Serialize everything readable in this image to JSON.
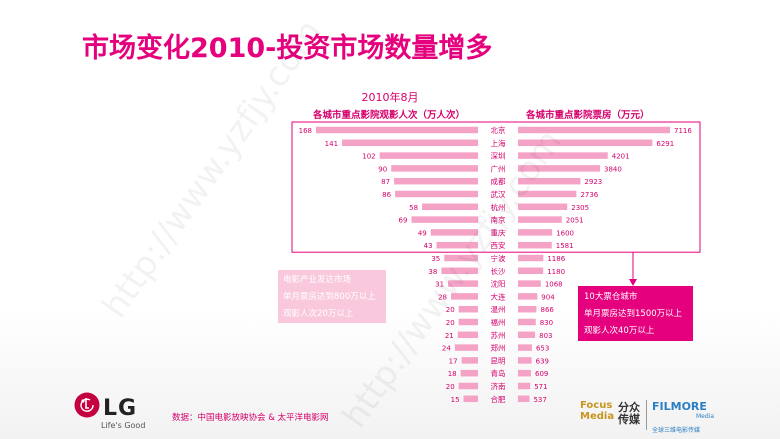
{
  "slide": {
    "title": "市场变化2010-投资市场数量增多",
    "source": "数据：中国电影放映协会 & 太平洋电影网"
  },
  "chart_data": {
    "type": "bar",
    "title": "2010年8月",
    "categories": [
      "北京",
      "上海",
      "深圳",
      "广州",
      "成都",
      "武汉",
      "杭州",
      "南京",
      "重庆",
      "西安",
      "宁波",
      "长沙",
      "沈阳",
      "大连",
      "温州",
      "福州",
      "苏州",
      "郑州",
      "昆明",
      "青岛",
      "济南",
      "合肥"
    ],
    "series": [
      {
        "name": "各城市重点影院观影人次（万人次）",
        "values": [
          168,
          141,
          102,
          90,
          87,
          86,
          58,
          69,
          49,
          43,
          35,
          38,
          31,
          28,
          20,
          20,
          21,
          24,
          17,
          18,
          20,
          15
        ]
      },
      {
        "name": "各城市重点影院票房（万元）",
        "values": [
          7116,
          6291,
          4201,
          3840,
          2923,
          2736,
          2305,
          2051,
          1600,
          1581,
          1186,
          1180,
          1068,
          904,
          866,
          830,
          803,
          653,
          639,
          609,
          571,
          537
        ]
      }
    ],
    "colors": {
      "bar": "#f4a3c6",
      "accent": "#e5007e",
      "label": "#d6006c"
    },
    "highlight_top": 10
  },
  "notes": {
    "left": [
      "电影产业发达市场",
      "单月票房达到800万以上",
      "观影人次20万以上"
    ],
    "right": [
      "10大票仓城市",
      "单月票房达到1500万以上",
      "观影人次40万以上"
    ]
  },
  "logos": {
    "lg": "LG",
    "lg_tagline": "Life's Good",
    "focus": "Focus Media",
    "focus_zh": "分众\n传媒",
    "filmore": "FILMORE",
    "filmore_sub": "Media",
    "filmore_zh": "全球三维电影传媒"
  },
  "watermark": "http://www.yzfjy.com"
}
